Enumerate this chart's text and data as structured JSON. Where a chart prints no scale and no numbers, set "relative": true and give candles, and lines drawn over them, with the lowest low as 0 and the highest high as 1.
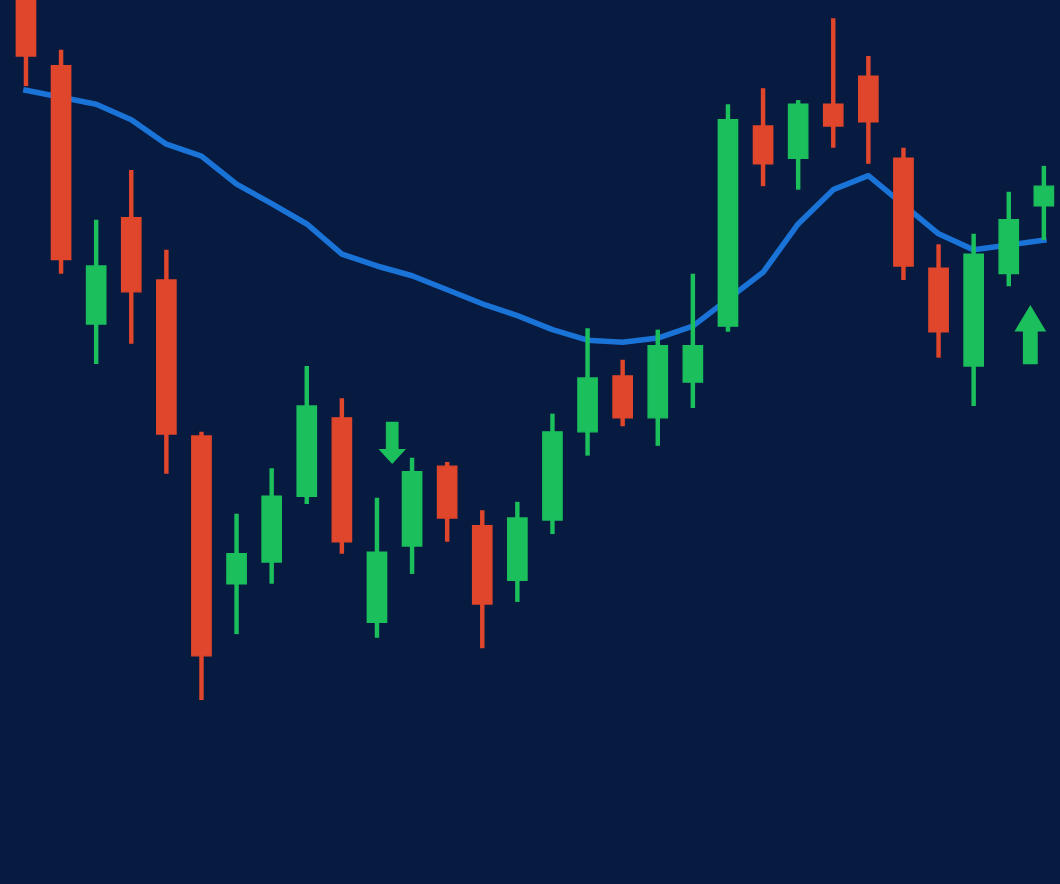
{
  "chart_data": {
    "type": "candlestick",
    "relative": true,
    "categories": [
      null,
      null,
      null,
      null,
      null,
      null,
      null,
      null,
      null,
      null,
      null,
      null,
      null,
      null,
      null,
      null,
      null,
      null,
      null,
      null,
      null,
      null,
      null,
      null,
      null,
      null,
      null,
      null,
      null,
      null
    ],
    "ohlc": [
      [
        1.0,
        1.0,
        0.877,
        0.92
      ],
      [
        0.906,
        0.929,
        0.609,
        0.629
      ],
      [
        0.537,
        0.686,
        0.48,
        0.62
      ],
      [
        0.689,
        0.757,
        0.509,
        0.583
      ],
      [
        0.6,
        0.643,
        0.323,
        0.38
      ],
      [
        0.377,
        0.383,
        0,
        0.063
      ],
      [
        0.166,
        0.266,
        0.094,
        0.209
      ],
      [
        0.197,
        0.331,
        0.166,
        0.291
      ],
      [
        0.291,
        0.477,
        0.28,
        0.42
      ],
      [
        0.403,
        0.431,
        0.209,
        0.226
      ],
      [
        0.111,
        0.289,
        0.089,
        0.211
      ],
      [
        0.22,
        0.346,
        0.18,
        0.326
      ],
      [
        0.334,
        0.34,
        0.226,
        0.26
      ],
      [
        0.249,
        0.271,
        0.074,
        0.137
      ],
      [
        0.171,
        0.283,
        0.14,
        0.26
      ],
      [
        0.257,
        0.409,
        0.237,
        0.383
      ],
      [
        0.383,
        0.531,
        0.349,
        0.46
      ],
      [
        0.463,
        0.486,
        0.391,
        0.403
      ],
      [
        0.403,
        0.529,
        0.363,
        0.506
      ],
      [
        0.454,
        0.609,
        0.417,
        0.506
      ],
      [
        0.534,
        0.851,
        0.526,
        0.829
      ],
      [
        0.82,
        0.874,
        0.734,
        0.766
      ],
      [
        0.774,
        0.857,
        0.729,
        0.851
      ],
      [
        0.851,
        0.974,
        0.789,
        0.82
      ],
      [
        0.891,
        0.92,
        0.766,
        0.826
      ],
      [
        0.774,
        0.789,
        0.6,
        0.62
      ],
      [
        0.617,
        0.651,
        0.489,
        0.526
      ],
      [
        0.477,
        0.666,
        0.42,
        0.637
      ],
      [
        0.609,
        0.726,
        0.591,
        0.686
      ],
      [
        0.706,
        0.763,
        0.657,
        0.734
      ]
    ],
    "colors": [
      "#e0462b",
      "#e0462b",
      "#1bbf5c",
      "#e0462b",
      "#e0462b",
      "#e0462b",
      "#1bbf5c",
      "#1bbf5c",
      "#1bbf5c",
      "#e0462b",
      "#1bbf5c",
      "#1bbf5c",
      "#e0462b",
      "#e0462b",
      "#1bbf5c",
      "#1bbf5c",
      "#1bbf5c",
      "#e0462b",
      "#1bbf5c",
      "#1bbf5c",
      "#1bbf5c",
      "#e0462b",
      "#1bbf5c",
      "#e0462b",
      "#e0462b",
      "#e0462b",
      "#e0462b",
      "#1bbf5c",
      "#1bbf5c",
      "#1bbf5c"
    ],
    "series": [
      {
        "type": "line",
        "color": "#1a74d8",
        "values": [
          0.871,
          null,
          0.851,
          0.829,
          0.794,
          0.777,
          0.737,
          0.709,
          0.68,
          0.637,
          0.62,
          0.606,
          0.586,
          0.566,
          0.549,
          0.529,
          0.514,
          0.511,
          0.517,
          0.534,
          null,
          0.611,
          0.68,
          0.729,
          0.749,
          null,
          0.666,
          0.643,
          null,
          0.657
        ]
      }
    ]
  }
}
